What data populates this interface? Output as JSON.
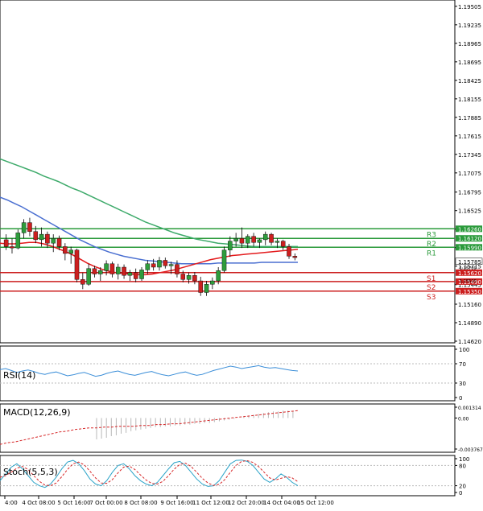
{
  "colors": {
    "frame": "#000000",
    "bull": "#2e9c3c",
    "bear": "#cc1f1f",
    "ma_fast": "#e31a1c",
    "ma_mid": "#4a6fd1",
    "ma_slow": "#3daa6a",
    "resistance": "#2a9a3a",
    "support": "#cc1f1f",
    "rsi": "#3b8ed8",
    "macd_hist": "#b8b8b8",
    "macd_signal": "#d62728",
    "stoch_k": "#2ba3c8",
    "stoch_d": "#d62728",
    "price_label_bg": "#ffffff"
  },
  "chart_data": [
    {
      "type": "candlestick",
      "yaxis_ticks": [
        "1.19505",
        "1.19235",
        "1.18965",
        "1.18695",
        "1.18425",
        "1.18155",
        "1.17885",
        "1.17615",
        "1.17345",
        "1.17075",
        "1.16795",
        "1.16525",
        "1.16255",
        "1.15985",
        "1.15715",
        "1.15445",
        "1.15160",
        "1.14890",
        "1.14620"
      ],
      "ylim": [
        1.1462,
        1.1955
      ],
      "xaxis_labels": [
        "4:00",
        "4 Oct 08:00",
        "5 Oct 16:00",
        "7 Oct 00:00",
        "8 Oct 08:00",
        "9 Oct 16:00",
        "11 Oct 12:00",
        "12 Oct 20:00",
        "14 Oct 04:00",
        "15 Oct 12:00"
      ],
      "current_price": "1.15785",
      "levels": [
        {
          "name": "R3",
          "value": 1.1626,
          "label": "1.16260",
          "kind": "resistance"
        },
        {
          "name": "R2",
          "value": 1.1612,
          "label": "1.16120",
          "kind": "resistance"
        },
        {
          "name": "R1",
          "value": 1.1599,
          "label": "1.15990",
          "kind": "resistance"
        },
        {
          "name": "S1",
          "value": 1.1562,
          "label": "1.15620",
          "kind": "support"
        },
        {
          "name": "S2",
          "value": 1.1549,
          "label": "1.15490",
          "kind": "support"
        },
        {
          "name": "S3",
          "value": 1.1535,
          "label": "1.15350",
          "kind": "support"
        }
      ],
      "small_labels": [
        "1.15700",
        "1.15510"
      ],
      "candles": [
        [
          1.161,
          1.1618,
          1.1595,
          1.16
        ],
        [
          1.16,
          1.1612,
          1.159,
          1.1598
        ],
        [
          1.1598,
          1.1625,
          1.1596,
          1.162
        ],
        [
          1.162,
          1.164,
          1.1612,
          1.1635
        ],
        [
          1.1635,
          1.1642,
          1.1615,
          1.1622
        ],
        [
          1.1622,
          1.163,
          1.1605,
          1.161
        ],
        [
          1.161,
          1.1628,
          1.16,
          1.1618
        ],
        [
          1.1618,
          1.1622,
          1.1598,
          1.1605
        ],
        [
          1.1605,
          1.1618,
          1.1592,
          1.1612
        ],
        [
          1.1612,
          1.1616,
          1.1595,
          1.16
        ],
        [
          1.16,
          1.1605,
          1.158,
          1.159
        ],
        [
          1.159,
          1.16,
          1.1575,
          1.1595
        ],
        [
          1.1595,
          1.1597,
          1.1548,
          1.1552
        ],
        [
          1.1552,
          1.1562,
          1.1538,
          1.1545
        ],
        [
          1.1545,
          1.1575,
          1.1543,
          1.1568
        ],
        [
          1.1568,
          1.1572,
          1.1555,
          1.156
        ],
        [
          1.156,
          1.157,
          1.155,
          1.1565
        ],
        [
          1.1565,
          1.158,
          1.1558,
          1.1575
        ],
        [
          1.1575,
          1.1578,
          1.1555,
          1.156
        ],
        [
          1.156,
          1.1575,
          1.1552,
          1.157
        ],
        [
          1.157,
          1.1574,
          1.1553,
          1.1558
        ],
        [
          1.1558,
          1.1566,
          1.155,
          1.1562
        ],
        [
          1.1562,
          1.1568,
          1.1548,
          1.1553
        ],
        [
          1.1553,
          1.157,
          1.155,
          1.1566
        ],
        [
          1.1566,
          1.158,
          1.156,
          1.1575
        ],
        [
          1.1575,
          1.1582,
          1.1565,
          1.157
        ],
        [
          1.157,
          1.1585,
          1.1565,
          1.158
        ],
        [
          1.158,
          1.1584,
          1.1568,
          1.1572
        ],
        [
          1.1572,
          1.1578,
          1.156,
          1.1574
        ],
        [
          1.1574,
          1.158,
          1.1555,
          1.156
        ],
        [
          1.156,
          1.1565,
          1.1548,
          1.1552
        ],
        [
          1.1552,
          1.1562,
          1.1546,
          1.1558
        ],
        [
          1.1558,
          1.1563,
          1.1545,
          1.155
        ],
        [
          1.155,
          1.1556,
          1.1528,
          1.1533
        ],
        [
          1.1533,
          1.155,
          1.1528,
          1.1545
        ],
        [
          1.1545,
          1.1555,
          1.1538,
          1.155
        ],
        [
          1.155,
          1.157,
          1.1545,
          1.1565
        ],
        [
          1.1565,
          1.16,
          1.1562,
          1.1595
        ],
        [
          1.1595,
          1.1615,
          1.1585,
          1.1608
        ],
        [
          1.1608,
          1.162,
          1.16,
          1.1612
        ],
        [
          1.1612,
          1.1628,
          1.1598,
          1.1605
        ],
        [
          1.1605,
          1.1618,
          1.1598,
          1.1615
        ],
        [
          1.1615,
          1.162,
          1.16,
          1.1606
        ],
        [
          1.1606,
          1.1612,
          1.1598,
          1.161
        ],
        [
          1.161,
          1.1622,
          1.1602,
          1.1618
        ],
        [
          1.1618,
          1.162,
          1.1602,
          1.1606
        ],
        [
          1.1606,
          1.1612,
          1.1598,
          1.1608
        ],
        [
          1.1608,
          1.161,
          1.1595,
          1.16
        ],
        [
          1.16,
          1.1604,
          1.1582,
          1.1586
        ],
        [
          1.1586,
          1.159,
          1.158,
          1.1584
        ]
      ],
      "ma_fast": [
        1.1605,
        1.1604,
        1.1604,
        1.1605,
        1.1606,
        1.1606,
        1.1604,
        1.1601,
        1.1597,
        1.1593,
        1.1588,
        1.1582,
        1.1576,
        1.1571,
        1.1567,
        1.1564,
        1.1562,
        1.1561,
        1.156,
        1.1559,
        1.1559,
        1.156,
        1.1562,
        1.1564,
        1.1566,
        1.1569,
        1.1572,
        1.1575,
        1.1578,
        1.1581,
        1.1583,
        1.1585,
        1.1587,
        1.1588,
        1.1589,
        1.159,
        1.1591,
        1.1592,
        1.1593,
        1.1594,
        1.1595,
        1.1596
      ],
      "ma_mid": [
        1.1672,
        1.1668,
        1.1663,
        1.1658,
        1.1652,
        1.1646,
        1.164,
        1.1634,
        1.1628,
        1.1622,
        1.1616,
        1.161,
        1.1605,
        1.16,
        1.1596,
        1.1592,
        1.1589,
        1.1586,
        1.1584,
        1.1582,
        1.158,
        1.1579,
        1.1578,
        1.1577,
        1.1576,
        1.1575,
        1.1575,
        1.1575,
        1.1575,
        1.1575,
        1.1576,
        1.1576,
        1.1576,
        1.1576,
        1.1576,
        1.1576,
        1.1577,
        1.1577,
        1.1577,
        1.1577,
        1.1577,
        1.1577
      ],
      "ma_slow": [
        1.1728,
        1.1724,
        1.172,
        1.1716,
        1.1712,
        1.1708,
        1.1703,
        1.1699,
        1.1695,
        1.169,
        1.1685,
        1.1681,
        1.1676,
        1.1671,
        1.1666,
        1.1661,
        1.1656,
        1.1651,
        1.1646,
        1.1641,
        1.1636,
        1.1632,
        1.1628,
        1.1624,
        1.162,
        1.1617,
        1.1614,
        1.1611,
        1.1609,
        1.1607,
        1.1605,
        1.1604,
        1.1603,
        1.1602,
        1.1601,
        1.16,
        1.16,
        1.16,
        1.16,
        1.16,
        1.16,
        1.16
      ]
    },
    {
      "type": "line",
      "name": "RSI(14)",
      "label": "RSI(14)",
      "yaxis_ticks": [
        "100",
        "70",
        "30",
        "0"
      ],
      "ylim": [
        0,
        100
      ],
      "levels": [
        70,
        30
      ],
      "values": [
        58,
        60,
        56,
        52,
        55,
        57,
        54,
        50,
        48,
        51,
        53,
        49,
        45,
        47,
        50,
        52,
        48,
        44,
        46,
        50,
        53,
        55,
        51,
        48,
        46,
        49,
        52,
        54,
        50,
        47,
        45,
        48,
        51,
        53,
        49,
        46,
        48,
        52,
        56,
        59,
        62,
        65,
        63,
        60,
        62,
        64,
        66,
        63,
        61,
        62,
        60,
        58,
        56,
        55
      ]
    },
    {
      "type": "bar+line",
      "name": "MACD(12,26,9)",
      "label": "MACD(12,26,9)",
      "yaxis_ticks": [
        "0.001314",
        "0.00",
        "-0.003767"
      ],
      "ylim": [
        -0.003767,
        0.001314
      ],
      "histogram": [
        -0.0026,
        -0.0025,
        -0.0024,
        -0.0022,
        -0.0021,
        -0.0019,
        -0.0018,
        -0.0016,
        -0.0015,
        -0.0014,
        -0.0013,
        -0.0012,
        -0.0011,
        -0.0011,
        -0.001,
        -0.001,
        -0.0009,
        -0.0009,
        -0.0008,
        -0.0008,
        -0.0007,
        -0.0007,
        -0.0006,
        -0.0006,
        -0.0005,
        -0.0004,
        -0.0003,
        -0.0002,
        -0.0001,
        0.0,
        0.0002,
        0.0003,
        0.0004,
        0.0005,
        0.0006,
        0.0007,
        0.0008,
        0.0008,
        0.0009,
        0.0009,
        0.0008
      ],
      "signal": [
        -0.0032,
        -0.003,
        -0.0029,
        -0.0027,
        -0.0025,
        -0.0023,
        -0.0021,
        -0.0019,
        -0.0017,
        -0.0016,
        -0.0014,
        -0.0013,
        -0.0012,
        -0.0012,
        -0.0011,
        -0.0011,
        -0.001,
        -0.001,
        -0.001,
        -0.0009,
        -0.0009,
        -0.0008,
        -0.0008,
        -0.0007,
        -0.0007,
        -0.0006,
        -0.0005,
        -0.0004,
        -0.0003,
        -0.0002,
        -0.0001,
        0.0,
        0.0001,
        0.0002,
        0.0003,
        0.0004,
        0.0005,
        0.0006,
        0.0007,
        0.0008,
        0.0009
      ]
    },
    {
      "type": "line",
      "name": "Stoch(5,5,3)",
      "label": "Stoch(5,5,3)",
      "yaxis_ticks": [
        "100",
        "80",
        "20",
        "0"
      ],
      "ylim": [
        0,
        100
      ],
      "levels": [
        80,
        20
      ],
      "k": [
        35,
        55,
        75,
        85,
        70,
        50,
        30,
        20,
        15,
        25,
        45,
        70,
        90,
        95,
        85,
        65,
        40,
        25,
        20,
        35,
        60,
        80,
        85,
        70,
        50,
        35,
        25,
        20,
        30,
        50,
        70,
        88,
        92,
        80,
        60,
        40,
        25,
        18,
        20,
        35,
        60,
        85,
        95,
        96,
        92,
        80,
        60,
        40,
        30,
        40,
        55,
        45,
        30,
        20
      ],
      "d": [
        45,
        50,
        60,
        72,
        77,
        68,
        50,
        33,
        22,
        20,
        28,
        47,
        68,
        85,
        90,
        82,
        63,
        43,
        28,
        27,
        38,
        58,
        75,
        78,
        68,
        52,
        37,
        27,
        25,
        33,
        50,
        69,
        83,
        87,
        77,
        60,
        42,
        28,
        21,
        24,
        38,
        60,
        80,
        92,
        94,
        89,
        77,
        60,
        43,
        37,
        42,
        47,
        43,
        32
      ]
    }
  ]
}
